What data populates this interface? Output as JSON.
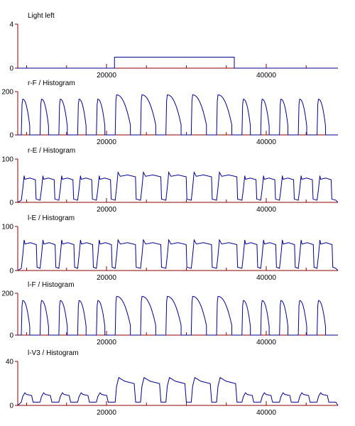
{
  "colors": {
    "axis": "#8b0000",
    "trace": "#00008b",
    "text": "#000000",
    "background": "#ffffff"
  },
  "chart_data": [
    {
      "type": "line",
      "title": "Light left",
      "xlim": [
        0,
        40000
      ],
      "xticks": [
        20000,
        40000
      ],
      "ylim": [
        0,
        4
      ],
      "yticks": [
        0,
        4
      ],
      "series": [
        {
          "shape": "boxcar",
          "on_start": 21000,
          "on_end": 36000,
          "level": 1
        }
      ]
    },
    {
      "type": "line",
      "title": "r-F / Histogram",
      "xlim": [
        0,
        40000
      ],
      "xticks": [
        20000,
        40000
      ],
      "ylim": [
        0,
        200
      ],
      "yticks": [
        0,
        200
      ],
      "series": [
        {
          "shape": "decay",
          "cycles": 15,
          "peak": 165,
          "peak_stim": 185,
          "duty": 0.45,
          "duty_stim": 0.6
        }
      ]
    },
    {
      "type": "line",
      "title": "r-E / Histogram",
      "xlim": [
        0,
        40000
      ],
      "xticks": [
        20000,
        40000
      ],
      "ylim": [
        0,
        100
      ],
      "yticks": [
        0,
        100
      ],
      "series": [
        {
          "shape": "plateau",
          "cycles": 15,
          "high": 55,
          "high_stim": 62,
          "low": 5,
          "duty": 0.75,
          "duty_stim": 0.8
        }
      ]
    },
    {
      "type": "line",
      "title": "l-E / Histogram",
      "xlim": [
        0,
        40000
      ],
      "xticks": [
        20000,
        40000
      ],
      "ylim": [
        0,
        100
      ],
      "yticks": [
        0,
        100
      ],
      "series": [
        {
          "shape": "plateau",
          "cycles": 15,
          "high": 62,
          "high_stim": 62,
          "low": 5,
          "duty": 0.8,
          "duty_stim": 0.8
        }
      ]
    },
    {
      "type": "line",
      "title": "l-F / Histogram",
      "xlim": [
        0,
        40000
      ],
      "xticks": [
        20000,
        40000
      ],
      "ylim": [
        0,
        200
      ],
      "yticks": [
        0,
        200
      ],
      "series": [
        {
          "shape": "decay",
          "cycles": 15,
          "peak": 165,
          "peak_stim": 185,
          "duty": 0.45,
          "duty_stim": 0.6
        }
      ]
    },
    {
      "type": "line",
      "title": "l-V3 / Histogram",
      "xlim": [
        0,
        40000
      ],
      "xticks": [
        20000,
        40000
      ],
      "ylim": [
        0,
        40
      ],
      "yticks": [
        0,
        40
      ],
      "series": [
        {
          "shape": "hump",
          "cycles": 15,
          "high": 10,
          "high_stim": 22,
          "low": 3,
          "duty": 0.55,
          "duty_stim": 0.75
        }
      ]
    }
  ]
}
